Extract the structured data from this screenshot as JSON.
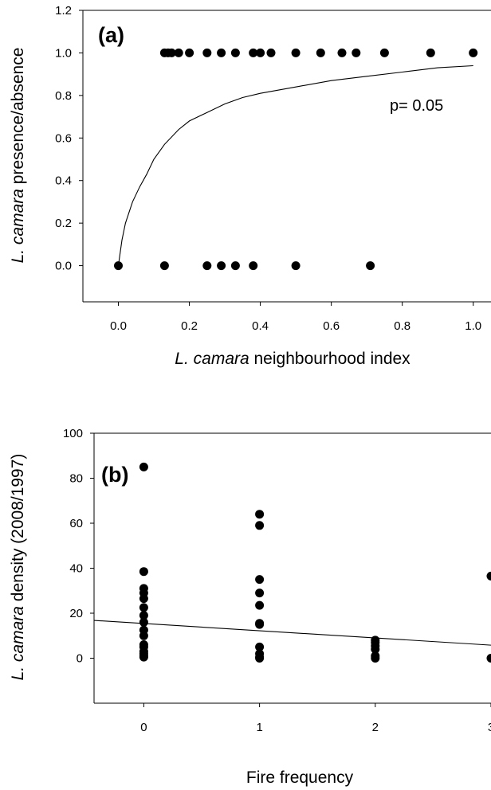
{
  "colors": {
    "marker": "#000000",
    "line": "#000000",
    "background": "#ffffff"
  },
  "chart_data": [
    {
      "type": "scatter",
      "panel_label": "(a)",
      "xlabel_italic": "L. camara",
      "xlabel_rest": " neighbourhood index",
      "ylabel_italic": "L. camara",
      "ylabel_rest": " presence/absence",
      "xlim": [
        -0.1,
        1.05
      ],
      "ylim": [
        -0.17,
        1.2
      ],
      "xticks": [
        "0.0",
        "0.2",
        "0.4",
        "0.6",
        "0.8",
        "1.0"
      ],
      "yticks": [
        "0.0",
        "0.2",
        "0.4",
        "0.6",
        "0.8",
        "1.0",
        "1.2"
      ],
      "annotation": "p= 0.05",
      "points": [
        {
          "x": 0.0,
          "y": 0
        },
        {
          "x": 0.13,
          "y": 0
        },
        {
          "x": 0.25,
          "y": 0
        },
        {
          "x": 0.29,
          "y": 0
        },
        {
          "x": 0.33,
          "y": 0
        },
        {
          "x": 0.38,
          "y": 0
        },
        {
          "x": 0.5,
          "y": 0
        },
        {
          "x": 0.71,
          "y": 0
        },
        {
          "x": 0.13,
          "y": 1
        },
        {
          "x": 0.14,
          "y": 1
        },
        {
          "x": 0.15,
          "y": 1
        },
        {
          "x": 0.17,
          "y": 1
        },
        {
          "x": 0.2,
          "y": 1
        },
        {
          "x": 0.25,
          "y": 1
        },
        {
          "x": 0.29,
          "y": 1
        },
        {
          "x": 0.33,
          "y": 1
        },
        {
          "x": 0.38,
          "y": 1
        },
        {
          "x": 0.4,
          "y": 1
        },
        {
          "x": 0.43,
          "y": 1
        },
        {
          "x": 0.5,
          "y": 1
        },
        {
          "x": 0.57,
          "y": 1
        },
        {
          "x": 0.63,
          "y": 1
        },
        {
          "x": 0.67,
          "y": 1
        },
        {
          "x": 0.75,
          "y": 1
        },
        {
          "x": 0.88,
          "y": 1
        },
        {
          "x": 1.0,
          "y": 1
        }
      ],
      "fit_line": {
        "x": [
          0.0,
          0.01,
          0.02,
          0.04,
          0.06,
          0.08,
          0.1,
          0.13,
          0.17,
          0.2,
          0.25,
          0.3,
          0.35,
          0.4,
          0.5,
          0.6,
          0.7,
          0.8,
          0.9,
          1.0
        ],
        "y": [
          0.0,
          0.12,
          0.2,
          0.3,
          0.37,
          0.43,
          0.5,
          0.57,
          0.64,
          0.68,
          0.72,
          0.76,
          0.79,
          0.81,
          0.84,
          0.87,
          0.89,
          0.91,
          0.93,
          0.94
        ]
      }
    },
    {
      "type": "scatter",
      "panel_label": "(b)",
      "xlabel_italic": "",
      "xlabel_rest": "Fire frequency",
      "ylabel_italic": "L. camara",
      "ylabel_rest": " density (2008/1997)",
      "xlim": [
        -0.43,
        3.0
      ],
      "ylim": [
        -20,
        100
      ],
      "xticks": [
        "0",
        "1",
        "2",
        "3"
      ],
      "yticks": [
        "0",
        "20",
        "40",
        "60",
        "80",
        "100"
      ],
      "points": [
        {
          "x": 0,
          "y": 85
        },
        {
          "x": 0,
          "y": 38.5
        },
        {
          "x": 0,
          "y": 31
        },
        {
          "x": 0,
          "y": 29
        },
        {
          "x": 0,
          "y": 26.5
        },
        {
          "x": 0,
          "y": 22.5
        },
        {
          "x": 0,
          "y": 19
        },
        {
          "x": 0,
          "y": 16
        },
        {
          "x": 0,
          "y": 12.5
        },
        {
          "x": 0,
          "y": 10
        },
        {
          "x": 0,
          "y": 6
        },
        {
          "x": 0,
          "y": 5
        },
        {
          "x": 0,
          "y": 3
        },
        {
          "x": 0,
          "y": 2
        },
        {
          "x": 0,
          "y": 1
        },
        {
          "x": 0,
          "y": 0.5
        },
        {
          "x": 1,
          "y": 64
        },
        {
          "x": 1,
          "y": 59
        },
        {
          "x": 1,
          "y": 35
        },
        {
          "x": 1,
          "y": 29
        },
        {
          "x": 1,
          "y": 23.5
        },
        {
          "x": 1,
          "y": 15.5
        },
        {
          "x": 1,
          "y": 15
        },
        {
          "x": 1,
          "y": 5
        },
        {
          "x": 1,
          "y": 2
        },
        {
          "x": 1,
          "y": 0.5
        },
        {
          "x": 1,
          "y": 0
        },
        {
          "x": 2,
          "y": 8
        },
        {
          "x": 2,
          "y": 7
        },
        {
          "x": 2,
          "y": 5.5
        },
        {
          "x": 2,
          "y": 4
        },
        {
          "x": 2,
          "y": 1
        },
        {
          "x": 2,
          "y": 0
        },
        {
          "x": 3,
          "y": 36.5
        },
        {
          "x": 3,
          "y": 0
        }
      ],
      "fit_line": {
        "x": [
          -0.43,
          3.0
        ],
        "y": [
          16.8,
          5.8
        ]
      }
    }
  ]
}
